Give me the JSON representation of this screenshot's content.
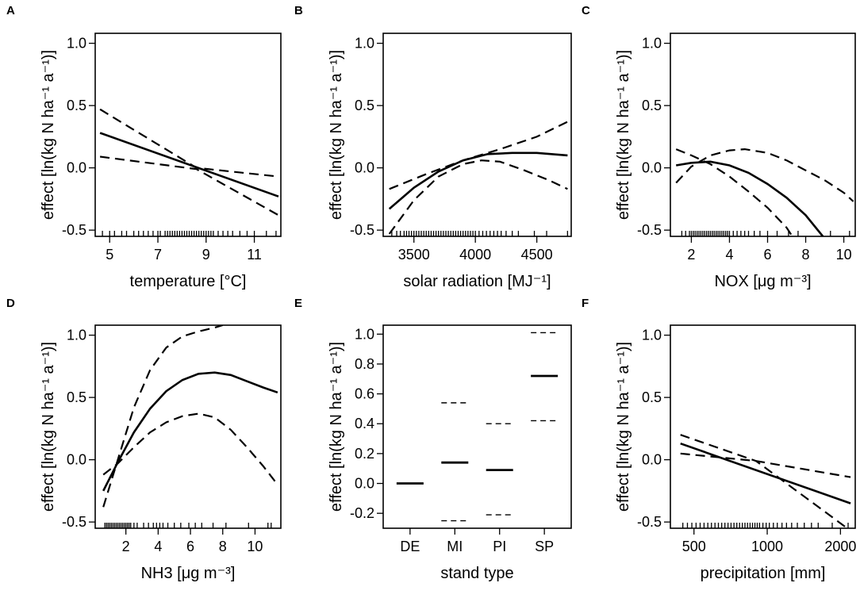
{
  "chart_data": [
    {
      "letter": "A",
      "type": "line",
      "xlabel": "temperature [°C]",
      "ylabel": "effect [ln(kg N ha⁻¹ a⁻¹)]",
      "xlim": [
        4.4,
        12.1
      ],
      "ylim": [
        -0.55,
        1.08
      ],
      "xticks": [
        {
          "v": 5,
          "label": "5"
        },
        {
          "v": 7,
          "label": "7"
        },
        {
          "v": 9,
          "label": "9"
        },
        {
          "v": 11,
          "label": "11"
        }
      ],
      "yticks": [
        {
          "v": -0.5,
          "label": "-0.5"
        },
        {
          "v": 0,
          "label": "0.0"
        },
        {
          "v": 0.5,
          "label": "0.5"
        },
        {
          "v": 1,
          "label": "1.0"
        }
      ],
      "fit": [
        [
          4.6,
          0.28
        ],
        [
          12.0,
          -0.23
        ]
      ],
      "ci_upper": [
        [
          4.6,
          0.47
        ],
        [
          8.6,
          0.0
        ],
        [
          12.0,
          -0.07
        ]
      ],
      "ci_lower": [
        [
          4.6,
          0.09
        ],
        [
          8.6,
          -0.01
        ],
        [
          12.0,
          -0.38
        ]
      ],
      "rug": [
        4.7,
        5.0,
        5.2,
        5.5,
        5.7,
        6.0,
        6.2,
        6.4,
        6.6,
        6.8,
        7.0,
        7.1,
        7.3,
        7.4,
        7.5,
        7.6,
        7.7,
        7.8,
        7.9,
        8.0,
        8.1,
        8.2,
        8.3,
        8.4,
        8.5,
        8.6,
        8.7,
        8.8,
        8.9,
        9.0,
        9.1,
        9.2,
        9.3,
        9.5,
        9.7,
        9.9,
        10.1,
        10.4,
        10.7,
        11.0,
        11.5,
        11.9
      ]
    },
    {
      "letter": "B",
      "type": "line",
      "xlabel": "solar radiation [MJ⁻¹]",
      "ylabel": "effect [ln(kg N ha⁻¹ a⁻¹)]",
      "xlim": [
        3250,
        4780
      ],
      "ylim": [
        -0.55,
        1.08
      ],
      "xticks": [
        {
          "v": 3500,
          "label": "3500"
        },
        {
          "v": 4000,
          "label": "4000"
        },
        {
          "v": 4500,
          "label": "4500"
        }
      ],
      "yticks": [
        {
          "v": -0.5,
          "label": "-0.5"
        },
        {
          "v": 0,
          "label": "0.0"
        },
        {
          "v": 0.5,
          "label": "0.5"
        },
        {
          "v": 1,
          "label": "1.0"
        }
      ],
      "fit": [
        [
          3300,
          -0.33
        ],
        [
          3500,
          -0.16
        ],
        [
          3700,
          -0.03
        ],
        [
          3900,
          0.06
        ],
        [
          4100,
          0.11
        ],
        [
          4300,
          0.12
        ],
        [
          4500,
          0.12
        ],
        [
          4750,
          0.1
        ]
      ],
      "ci_upper": [
        [
          3300,
          -0.17
        ],
        [
          3600,
          -0.05
        ],
        [
          3900,
          0.06
        ],
        [
          4200,
          0.15
        ],
        [
          4500,
          0.25
        ],
        [
          4750,
          0.37
        ]
      ],
      "ci_lower": [
        [
          3300,
          -0.53
        ],
        [
          3500,
          -0.26
        ],
        [
          3700,
          -0.07
        ],
        [
          3900,
          0.03
        ],
        [
          4050,
          0.06
        ],
        [
          4200,
          0.05
        ],
        [
          4400,
          -0.02
        ],
        [
          4600,
          -0.1
        ],
        [
          4750,
          -0.17
        ]
      ],
      "rug": [
        3320,
        3360,
        3390,
        3420,
        3440,
        3460,
        3480,
        3500,
        3520,
        3540,
        3560,
        3580,
        3600,
        3620,
        3640,
        3660,
        3680,
        3700,
        3720,
        3740,
        3760,
        3780,
        3800,
        3820,
        3840,
        3860,
        3880,
        3900,
        3920,
        3940,
        3960,
        3980,
        4000,
        4030,
        4060,
        4090,
        4120,
        4150,
        4180,
        4210,
        4250,
        4300,
        4350,
        4480,
        4580,
        4750
      ]
    },
    {
      "letter": "C",
      "type": "line",
      "xlabel": "NOX [μg m⁻³]",
      "ylabel": "effect [ln(kg N ha⁻¹ a⁻¹)]",
      "xlim": [
        0.9,
        10.6
      ],
      "ylim": [
        -0.55,
        1.08
      ],
      "xticks": [
        {
          "v": 2,
          "label": "2"
        },
        {
          "v": 4,
          "label": "4"
        },
        {
          "v": 6,
          "label": "6"
        },
        {
          "v": 8,
          "label": "8"
        },
        {
          "v": 10,
          "label": "10"
        }
      ],
      "yticks": [
        {
          "v": -0.5,
          "label": "-0.5"
        },
        {
          "v": 0,
          "label": "0.0"
        },
        {
          "v": 0.5,
          "label": "0.5"
        },
        {
          "v": 1,
          "label": "1.0"
        }
      ],
      "fit": [
        [
          1.2,
          0.02
        ],
        [
          2.0,
          0.04
        ],
        [
          3.0,
          0.05
        ],
        [
          4.0,
          0.02
        ],
        [
          5.0,
          -0.04
        ],
        [
          6.0,
          -0.13
        ],
        [
          7.0,
          -0.24
        ],
        [
          8.0,
          -0.38
        ],
        [
          8.9,
          -0.55
        ]
      ],
      "ci_upper": [
        [
          1.2,
          -0.12
        ],
        [
          2.0,
          0.01
        ],
        [
          3.0,
          0.1
        ],
        [
          4.0,
          0.14
        ],
        [
          4.8,
          0.15
        ],
        [
          6.0,
          0.12
        ],
        [
          7.0,
          0.06
        ],
        [
          8.0,
          -0.02
        ],
        [
          9.0,
          -0.1
        ],
        [
          10.0,
          -0.2
        ],
        [
          10.5,
          -0.27
        ]
      ],
      "ci_lower": [
        [
          1.2,
          0.15
        ],
        [
          2.0,
          0.1
        ],
        [
          3.0,
          0.03
        ],
        [
          4.0,
          -0.07
        ],
        [
          5.0,
          -0.19
        ],
        [
          6.0,
          -0.32
        ],
        [
          7.0,
          -0.48
        ],
        [
          7.3,
          -0.55
        ]
      ],
      "rug": [
        1.5,
        1.7,
        1.9,
        2.0,
        2.1,
        2.2,
        2.3,
        2.4,
        2.5,
        2.6,
        2.7,
        2.8,
        2.9,
        3.0,
        3.1,
        3.2,
        3.3,
        3.4,
        3.5,
        3.6,
        3.7,
        3.8,
        3.9,
        4.0,
        4.2,
        4.4,
        4.6,
        4.8,
        5.0,
        5.3,
        5.6,
        6.0,
        6.5,
        7.1,
        7.6,
        9.3,
        10.3
      ]
    },
    {
      "letter": "D",
      "type": "line",
      "xlabel": "NH3 [μg m⁻³]",
      "ylabel": "effect [ln(kg N ha⁻¹ a⁻¹)]",
      "xlim": [
        0.1,
        11.6
      ],
      "ylim": [
        -0.55,
        1.08
      ],
      "xticks": [
        {
          "v": 2,
          "label": "2"
        },
        {
          "v": 4,
          "label": "4"
        },
        {
          "v": 6,
          "label": "6"
        },
        {
          "v": 8,
          "label": "8"
        },
        {
          "v": 10,
          "label": "10"
        }
      ],
      "yticks": [
        {
          "v": -0.5,
          "label": "-0.5"
        },
        {
          "v": 0,
          "label": "0.0"
        },
        {
          "v": 0.5,
          "label": "0.5"
        },
        {
          "v": 1,
          "label": "1.0"
        }
      ],
      "fit": [
        [
          0.6,
          -0.25
        ],
        [
          1.5,
          -0.02
        ],
        [
          2.5,
          0.22
        ],
        [
          3.5,
          0.41
        ],
        [
          4.5,
          0.55
        ],
        [
          5.5,
          0.64
        ],
        [
          6.5,
          0.69
        ],
        [
          7.5,
          0.7
        ],
        [
          8.5,
          0.68
        ],
        [
          9.5,
          0.63
        ],
        [
          10.5,
          0.58
        ],
        [
          11.4,
          0.54
        ]
      ],
      "ci_upper": [
        [
          0.6,
          -0.38
        ],
        [
          1.5,
          0.0
        ],
        [
          2.5,
          0.42
        ],
        [
          3.5,
          0.72
        ],
        [
          4.5,
          0.9
        ],
        [
          5.5,
          0.99
        ],
        [
          6.5,
          1.03
        ],
        [
          7.5,
          1.06
        ],
        [
          8.0,
          1.08
        ]
      ],
      "ci_lower": [
        [
          0.6,
          -0.12
        ],
        [
          1.5,
          -0.03
        ],
        [
          2.5,
          0.1
        ],
        [
          3.5,
          0.22
        ],
        [
          4.5,
          0.3
        ],
        [
          5.5,
          0.35
        ],
        [
          6.5,
          0.37
        ],
        [
          7.5,
          0.34
        ],
        [
          8.5,
          0.24
        ],
        [
          9.5,
          0.1
        ],
        [
          10.5,
          -0.05
        ],
        [
          11.4,
          -0.2
        ]
      ],
      "rug": [
        0.7,
        0.8,
        0.9,
        1.0,
        1.1,
        1.2,
        1.3,
        1.4,
        1.5,
        1.6,
        1.7,
        1.8,
        1.9,
        2.0,
        2.1,
        2.2,
        2.3,
        2.5,
        2.7,
        3.1,
        3.4,
        3.7,
        3.9,
        4.1,
        4.3,
        4.6,
        5.0,
        5.4,
        5.9,
        6.3,
        6.7,
        7.4,
        8.2,
        9.6,
        10.8,
        11.0
      ]
    },
    {
      "letter": "E",
      "type": "categorical",
      "xlabel": "stand type",
      "ylabel": "effect [ln(kg N ha⁻¹ a⁻¹)]",
      "xlim": [
        0.4,
        4.6
      ],
      "ylim": [
        -0.3,
        1.06
      ],
      "xticks": [
        {
          "v": 1,
          "label": "DE"
        },
        {
          "v": 2,
          "label": "MI"
        },
        {
          "v": 3,
          "label": "PI"
        },
        {
          "v": 4,
          "label": "SP"
        }
      ],
      "yticks": [
        {
          "v": -0.2,
          "label": "-0.2"
        },
        {
          "v": 0,
          "label": "0.0"
        },
        {
          "v": 0.2,
          "label": "0.2"
        },
        {
          "v": 0.4,
          "label": "0.4"
        },
        {
          "v": 0.6,
          "label": "0.6"
        },
        {
          "v": 0.8,
          "label": "0.8"
        },
        {
          "v": 1,
          "label": "1.0"
        }
      ],
      "categories": [
        "DE",
        "MI",
        "PI",
        "SP"
      ],
      "estimates": [
        0.0,
        0.14,
        0.09,
        0.72
      ],
      "ci_upper": [
        null,
        0.54,
        0.4,
        1.01
      ],
      "ci_lower": [
        null,
        -0.25,
        -0.21,
        0.42
      ]
    },
    {
      "letter": "F",
      "type": "line",
      "xlabel": "precipitation [mm]",
      "ylabel": "effect [ln(kg N ha⁻¹ a⁻¹)]",
      "xlim": [
        400,
        2300
      ],
      "xscale": "log",
      "ylim": [
        -0.55,
        1.08
      ],
      "xticks": [
        {
          "v": 500,
          "label": "500"
        },
        {
          "v": 1000,
          "label": "1000"
        },
        {
          "v": 2000,
          "label": "2000"
        }
      ],
      "yticks": [
        {
          "v": -0.5,
          "label": "-0.5"
        },
        {
          "v": 0,
          "label": "0.0"
        },
        {
          "v": 0.5,
          "label": "0.5"
        },
        {
          "v": 1,
          "label": "1.0"
        }
      ],
      "fit": [
        [
          440,
          0.13
        ],
        [
          2200,
          -0.35
        ]
      ],
      "ci_upper": [
        [
          440,
          0.05
        ],
        [
          900,
          -0.01
        ],
        [
          2200,
          -0.14
        ]
      ],
      "ci_lower": [
        [
          440,
          0.2
        ],
        [
          900,
          -0.01
        ],
        [
          2200,
          -0.57
        ]
      ],
      "rug": [
        450,
        470,
        490,
        510,
        530,
        550,
        570,
        590,
        610,
        630,
        650,
        670,
        690,
        710,
        730,
        750,
        770,
        790,
        810,
        830,
        850,
        870,
        890,
        910,
        930,
        960,
        990,
        1020,
        1060,
        1100,
        1150,
        1200,
        1260,
        1330,
        1420,
        1520,
        1620,
        1850,
        2150
      ]
    }
  ]
}
